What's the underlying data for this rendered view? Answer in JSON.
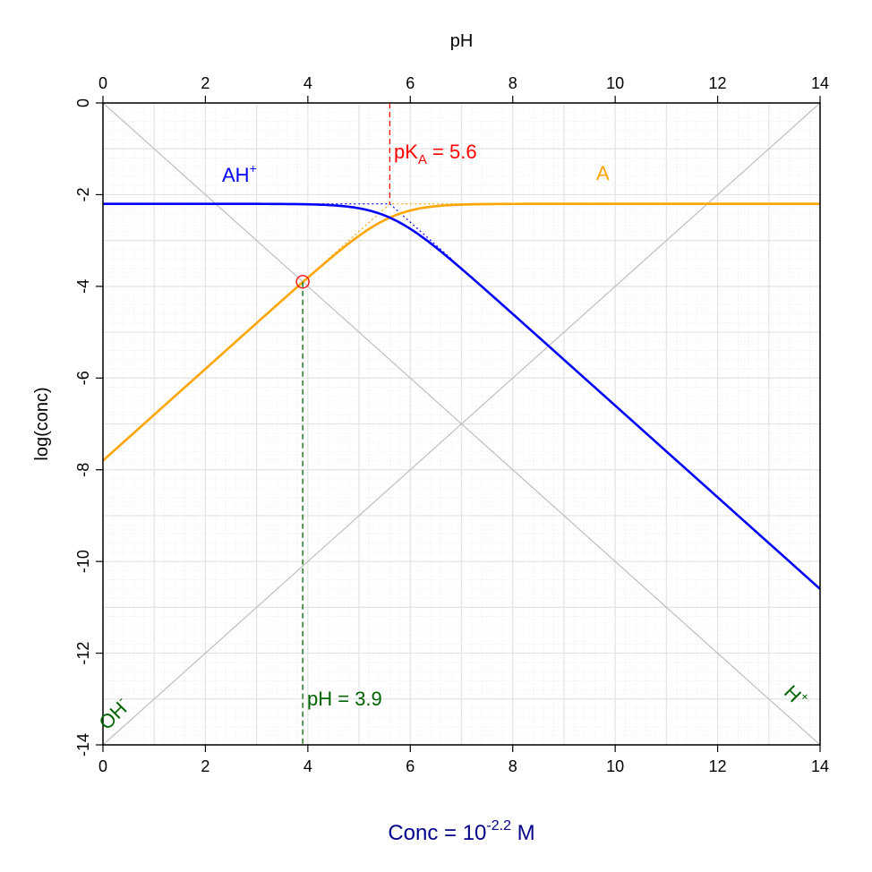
{
  "chart_data": {
    "type": "line",
    "title": "",
    "xlabel_top": "pH",
    "ylabel": "log(conc)",
    "x_ticks": [
      "0",
      "2",
      "4",
      "6",
      "8",
      "10",
      "12",
      "14"
    ],
    "y_ticks": [
      "0",
      "-2",
      "-4",
      "-6",
      "-8",
      "-10",
      "-12",
      "-14"
    ],
    "xlim": [
      0,
      14
    ],
    "ylim": [
      -14,
      0
    ],
    "grid": true,
    "log_conc_total": -2.2,
    "pKa": 5.6,
    "series": [
      {
        "name": "AH⁺",
        "color": "#0000ff",
        "x": [
          0,
          2,
          3,
          4,
          5,
          5.6,
          6,
          7,
          8,
          10,
          12,
          14
        ],
        "y": [
          -2.2,
          -2.2,
          -2.2,
          -2.22,
          -2.3,
          -2.5,
          -2.75,
          -3.6,
          -4.6,
          -6.6,
          -8.6,
          -10.6
        ]
      },
      {
        "name": "A",
        "color": "#ffa500",
        "x": [
          0,
          1,
          2,
          3,
          4,
          5,
          5.6,
          6,
          7,
          8,
          10,
          12,
          14
        ],
        "y": [
          -7.8,
          -6.8,
          -5.8,
          -4.8,
          -3.8,
          -2.9,
          -2.5,
          -2.35,
          -2.22,
          -2.2,
          -2.2,
          -2.2,
          -2.2
        ]
      },
      {
        "name": "H⁺",
        "color": "#bebebe",
        "x": [
          0,
          14
        ],
        "y": [
          0,
          -14
        ]
      },
      {
        "name": "OH⁻",
        "color": "#bebebe",
        "x": [
          0,
          14
        ],
        "y": [
          -14,
          0
        ]
      }
    ],
    "annotations": {
      "pka_label": "pK",
      "pka_sub": "A",
      "pka_value": " = 5.6",
      "ph_label": "pH = 3.9",
      "ph_value": 3.9,
      "ph_point_y": -3.9,
      "conc_prefix": "Conc = 10",
      "conc_exp": "-2.2",
      "conc_suffix": " M",
      "ah_label": "AH",
      "ah_sup": "+",
      "a_label": "A",
      "oh_label": "OH",
      "oh_sup": "-",
      "h_label": "H",
      "h_sup": "+"
    },
    "colors": {
      "ah": "#0000ff",
      "a": "#ffa500",
      "pka": "#ff0000",
      "ph": "#006400",
      "conc": "#00008b",
      "water": "#bebebe"
    }
  }
}
